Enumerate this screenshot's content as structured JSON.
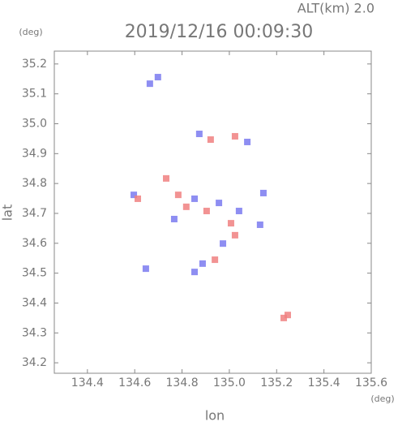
{
  "chart_data": {
    "type": "scatter",
    "title": "2019/12/16 00:09:30",
    "subtitle": "ALT(km) 2.0",
    "y_unit": "(deg)",
    "x_unit": "(deg)",
    "xlabel": "lon",
    "ylabel": "lat",
    "xlim": [
      134.26,
      135.6
    ],
    "ylim": [
      34.165,
      35.243
    ],
    "xticks": [
      134.4,
      134.6,
      134.8,
      {
        "value": 135,
        "label": "135.0"
      },
      135.2,
      135.4,
      135.6
    ],
    "yticks": [
      34.2,
      34.3,
      34.4,
      34.5,
      34.6,
      34.7,
      34.8,
      34.9,
      {
        "value": 35,
        "label": "35.0"
      },
      35.1,
      35.2
    ],
    "series": [
      {
        "color": "#7a7af0",
        "x": [
          134.664,
          134.698,
          134.873,
          135.076,
          134.596,
          134.853,
          134.956,
          134.973,
          135.041,
          134.887,
          134.853,
          135.144,
          135.13,
          134.647,
          134.767
        ],
        "y": [
          35.134,
          35.156,
          34.966,
          34.939,
          34.762,
          34.749,
          34.735,
          34.599,
          34.708,
          34.532,
          34.504,
          34.768,
          34.662,
          34.515,
          34.681
        ]
      },
      {
        "color": "#f08080",
        "x": [
          134.921,
          135.024,
          134.613,
          134.733,
          134.784,
          134.904,
          135.007,
          135.024,
          134.939,
          135.23,
          135.247,
          134.818
        ],
        "y": [
          34.947,
          34.958,
          34.749,
          34.817,
          34.762,
          34.708,
          34.667,
          34.627,
          34.545,
          34.35,
          34.36,
          34.722
        ]
      }
    ]
  }
}
